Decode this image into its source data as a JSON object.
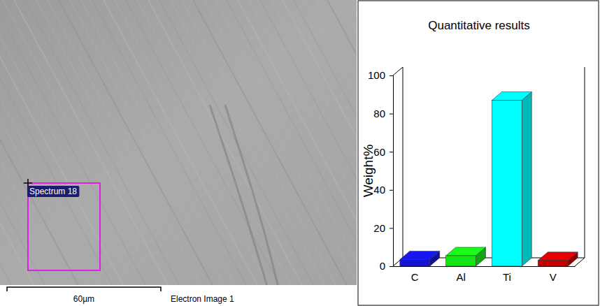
{
  "chart_data": {
    "type": "bar",
    "title": "Quantitative results",
    "y_label": "Weight%",
    "categories": [
      "C",
      "Al",
      "Ti",
      "V"
    ],
    "values": [
      3.5,
      5.5,
      87,
      3
    ],
    "colors": [
      "#1414d2",
      "#14e614",
      "#00ffff",
      "#c80000"
    ],
    "ylim": [
      0,
      100
    ],
    "yticks": [
      0,
      20,
      40,
      60,
      80,
      100
    ],
    "grid": false
  },
  "electron_image": {
    "spectrum_label": "Spectrum 18",
    "scale_bar_label": "60µm",
    "caption": "Electron Image 1"
  }
}
